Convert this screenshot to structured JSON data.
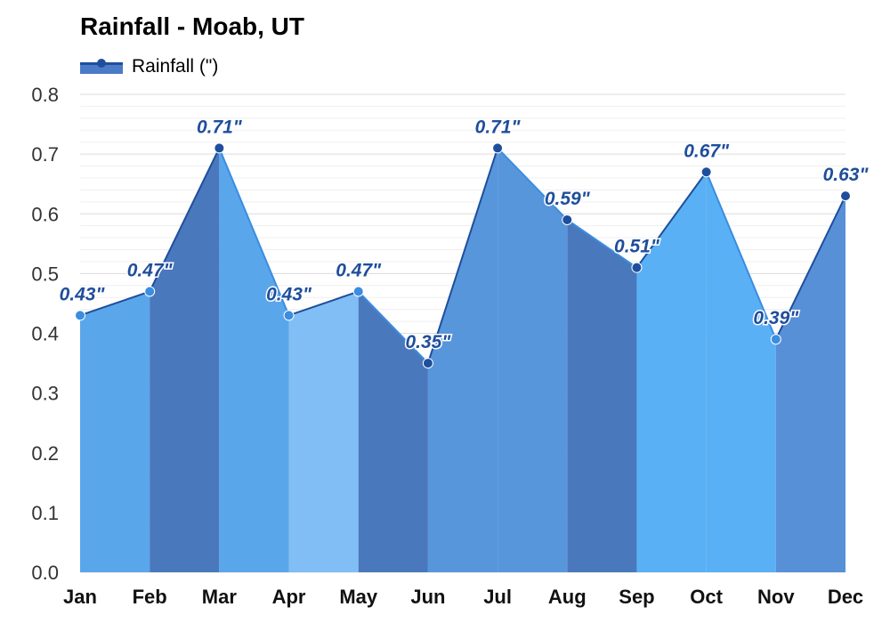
{
  "chart_data": {
    "type": "area",
    "title": "Rainfall - Moab, UT",
    "xlabel": "",
    "ylabel": "",
    "categories": [
      "Jan",
      "Feb",
      "Mar",
      "Apr",
      "May",
      "Jun",
      "Jul",
      "Aug",
      "Sep",
      "Oct",
      "Nov",
      "Dec"
    ],
    "series": [
      {
        "name": "Rainfall (\")",
        "values": [
          0.43,
          0.47,
          0.71,
          0.43,
          0.47,
          0.35,
          0.71,
          0.59,
          0.51,
          0.67,
          0.39,
          0.63
        ]
      }
    ],
    "data_labels": [
      "0.43\"",
      "0.47\"",
      "0.71\"",
      "0.43\"",
      "0.47\"",
      "0.35\"",
      "0.71\"",
      "0.59\"",
      "0.51\"",
      "0.67\"",
      "0.39\"",
      "0.63\""
    ],
    "ylim": [
      0,
      0.8
    ],
    "yticks": [
      "0.0",
      "0.1",
      "0.2",
      "0.3",
      "0.4",
      "0.5",
      "0.6",
      "0.7",
      "0.8"
    ],
    "ytick_values": [
      0,
      0.1,
      0.2,
      0.3,
      0.4,
      0.5,
      0.6,
      0.7,
      0.8
    ],
    "grid": true,
    "legend_position": "top-left",
    "colors": {
      "segment_fills": [
        "#5aa6ea",
        "#4a78bd",
        "#5aa6ea",
        "#80bef5",
        "#4a78bd",
        "#5896dc",
        "#4a78bd",
        "#5ab0f4",
        "#5890d8"
      ],
      "segment_pattern": [
        0,
        1,
        0,
        0,
        2,
        1,
        3,
        3,
        1,
        4,
        5
      ],
      "line": "#1f4e9c",
      "light_line": "#3b8de0",
      "point": "#1f4e9c",
      "light_point": "#3b8de0",
      "label": "#1f4e9c",
      "grid": "#e6e6e6",
      "axis_text": "#333333"
    }
  }
}
